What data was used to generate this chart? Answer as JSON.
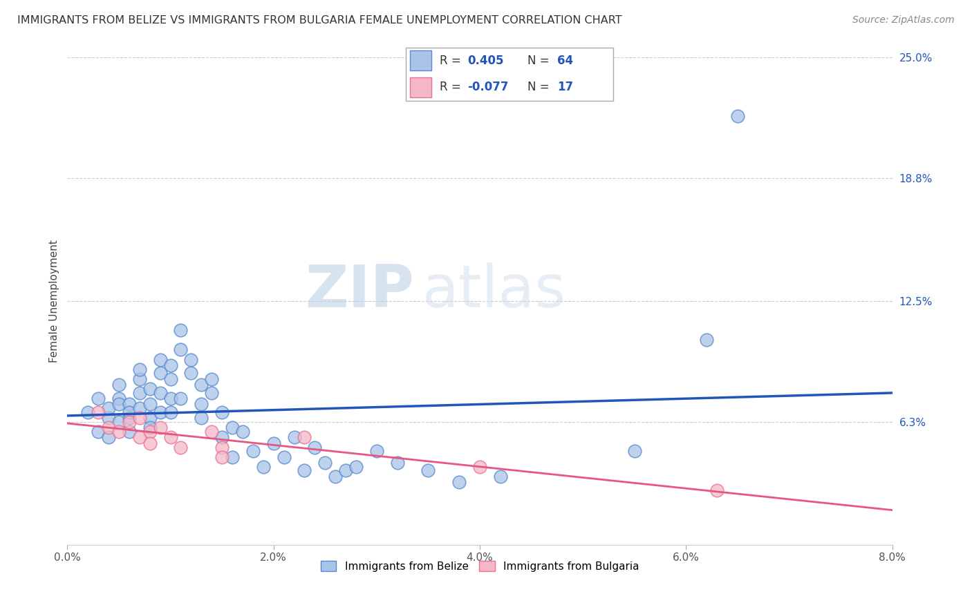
{
  "title": "IMMIGRANTS FROM BELIZE VS IMMIGRANTS FROM BULGARIA FEMALE UNEMPLOYMENT CORRELATION CHART",
  "source": "Source: ZipAtlas.com",
  "ylabel": "Female Unemployment",
  "xlim": [
    0.0,
    0.08
  ],
  "ylim": [
    0.0,
    0.25
  ],
  "xtick_labels": [
    "0.0%",
    "2.0%",
    "4.0%",
    "6.0%",
    "8.0%"
  ],
  "xtick_vals": [
    0.0,
    0.02,
    0.04,
    0.06,
    0.08
  ],
  "ytick_labels": [
    "6.3%",
    "12.5%",
    "18.8%",
    "25.0%"
  ],
  "ytick_vals": [
    0.063,
    0.125,
    0.188,
    0.25
  ],
  "belize_color": "#aac4e8",
  "belize_edge_color": "#5588cc",
  "bulgaria_color": "#f5b8c8",
  "bulgaria_edge_color": "#e87090",
  "belize_line_color": "#2255bb",
  "bulgaria_line_color": "#e85580",
  "legend_R_color": "#2255bb",
  "belize_R": "0.405",
  "belize_N": "64",
  "bulgaria_R": "-0.077",
  "bulgaria_N": "17",
  "legend_label_belize": "Immigrants from Belize",
  "legend_label_bulgaria": "Immigrants from Bulgaria",
  "watermark_zip": "ZIP",
  "watermark_atlas": "atlas",
  "belize_x": [
    0.002,
    0.003,
    0.003,
    0.004,
    0.004,
    0.004,
    0.005,
    0.005,
    0.005,
    0.005,
    0.006,
    0.006,
    0.006,
    0.006,
    0.007,
    0.007,
    0.007,
    0.007,
    0.008,
    0.008,
    0.008,
    0.008,
    0.009,
    0.009,
    0.009,
    0.009,
    0.01,
    0.01,
    0.01,
    0.01,
    0.011,
    0.011,
    0.011,
    0.012,
    0.012,
    0.013,
    0.013,
    0.013,
    0.014,
    0.014,
    0.015,
    0.015,
    0.016,
    0.016,
    0.017,
    0.018,
    0.019,
    0.02,
    0.021,
    0.022,
    0.023,
    0.024,
    0.025,
    0.026,
    0.027,
    0.028,
    0.03,
    0.032,
    0.035,
    0.038,
    0.042,
    0.055,
    0.062,
    0.065
  ],
  "belize_y": [
    0.068,
    0.075,
    0.058,
    0.065,
    0.07,
    0.055,
    0.075,
    0.082,
    0.063,
    0.072,
    0.065,
    0.072,
    0.058,
    0.068,
    0.085,
    0.078,
    0.09,
    0.07,
    0.072,
    0.065,
    0.08,
    0.06,
    0.088,
    0.078,
    0.095,
    0.068,
    0.085,
    0.092,
    0.075,
    0.068,
    0.1,
    0.11,
    0.075,
    0.088,
    0.095,
    0.082,
    0.072,
    0.065,
    0.078,
    0.085,
    0.068,
    0.055,
    0.06,
    0.045,
    0.058,
    0.048,
    0.04,
    0.052,
    0.045,
    0.055,
    0.038,
    0.05,
    0.042,
    0.035,
    0.038,
    0.04,
    0.048,
    0.042,
    0.038,
    0.032,
    0.035,
    0.048,
    0.105,
    0.22
  ],
  "bulgaria_x": [
    0.003,
    0.004,
    0.005,
    0.006,
    0.007,
    0.007,
    0.008,
    0.008,
    0.009,
    0.01,
    0.011,
    0.014,
    0.015,
    0.015,
    0.023,
    0.04,
    0.063
  ],
  "bulgaria_y": [
    0.068,
    0.06,
    0.058,
    0.063,
    0.055,
    0.065,
    0.058,
    0.052,
    0.06,
    0.055,
    0.05,
    0.058,
    0.05,
    0.045,
    0.055,
    0.04,
    0.028
  ]
}
